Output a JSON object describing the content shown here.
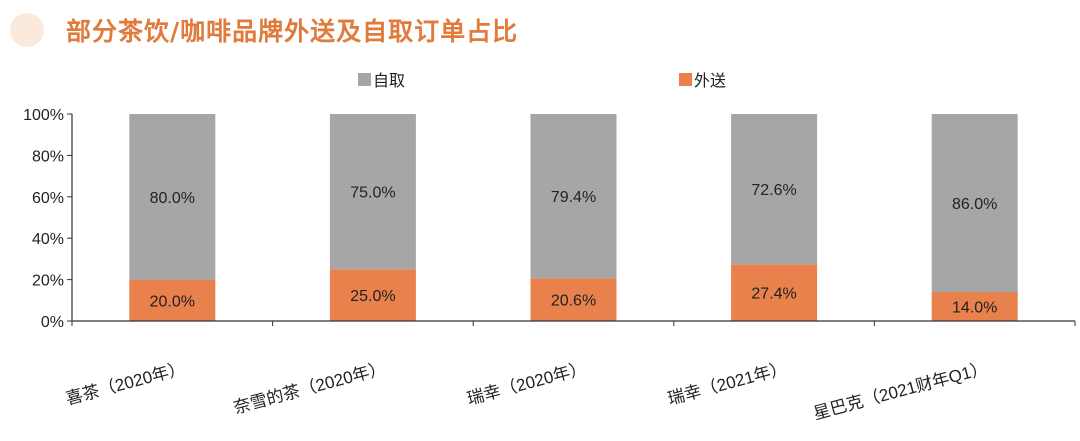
{
  "header": {
    "title": "部分茶饮/咖啡品牌外送及自取订单占比"
  },
  "colors": {
    "title": "#e07b3c",
    "title_circle": "#fbe9dc",
    "pickup": "#a6a6a6",
    "delivery": "#e8814c",
    "axis": "#333333"
  },
  "chart_data": {
    "type": "bar",
    "stacked": true,
    "percent": true,
    "categories": [
      "喜茶（2020年）",
      "奈雪的茶（2020年）",
      "瑞幸（2020年）",
      "瑞幸（2021年）",
      "星巴克（2021财年Q1）"
    ],
    "series": [
      {
        "name": "外送",
        "values": [
          20.0,
          25.0,
          20.6,
          27.4,
          14.0
        ],
        "labels": [
          "20.0%",
          "25.0%",
          "20.6%",
          "27.4%",
          "14.0%"
        ],
        "color": "#e8814c"
      },
      {
        "name": "自取",
        "values": [
          80.0,
          75.0,
          79.4,
          72.6,
          86.0
        ],
        "labels": [
          "80.0%",
          "75.0%",
          "79.4%",
          "72.6%",
          "86.0%"
        ],
        "color": "#a6a6a6"
      }
    ],
    "legend": [
      "自取",
      "外送"
    ],
    "legend_position": "top",
    "yticks": [
      "0%",
      "20%",
      "40%",
      "60%",
      "80%",
      "100%"
    ],
    "ylim": [
      0,
      100
    ],
    "grid": false
  }
}
